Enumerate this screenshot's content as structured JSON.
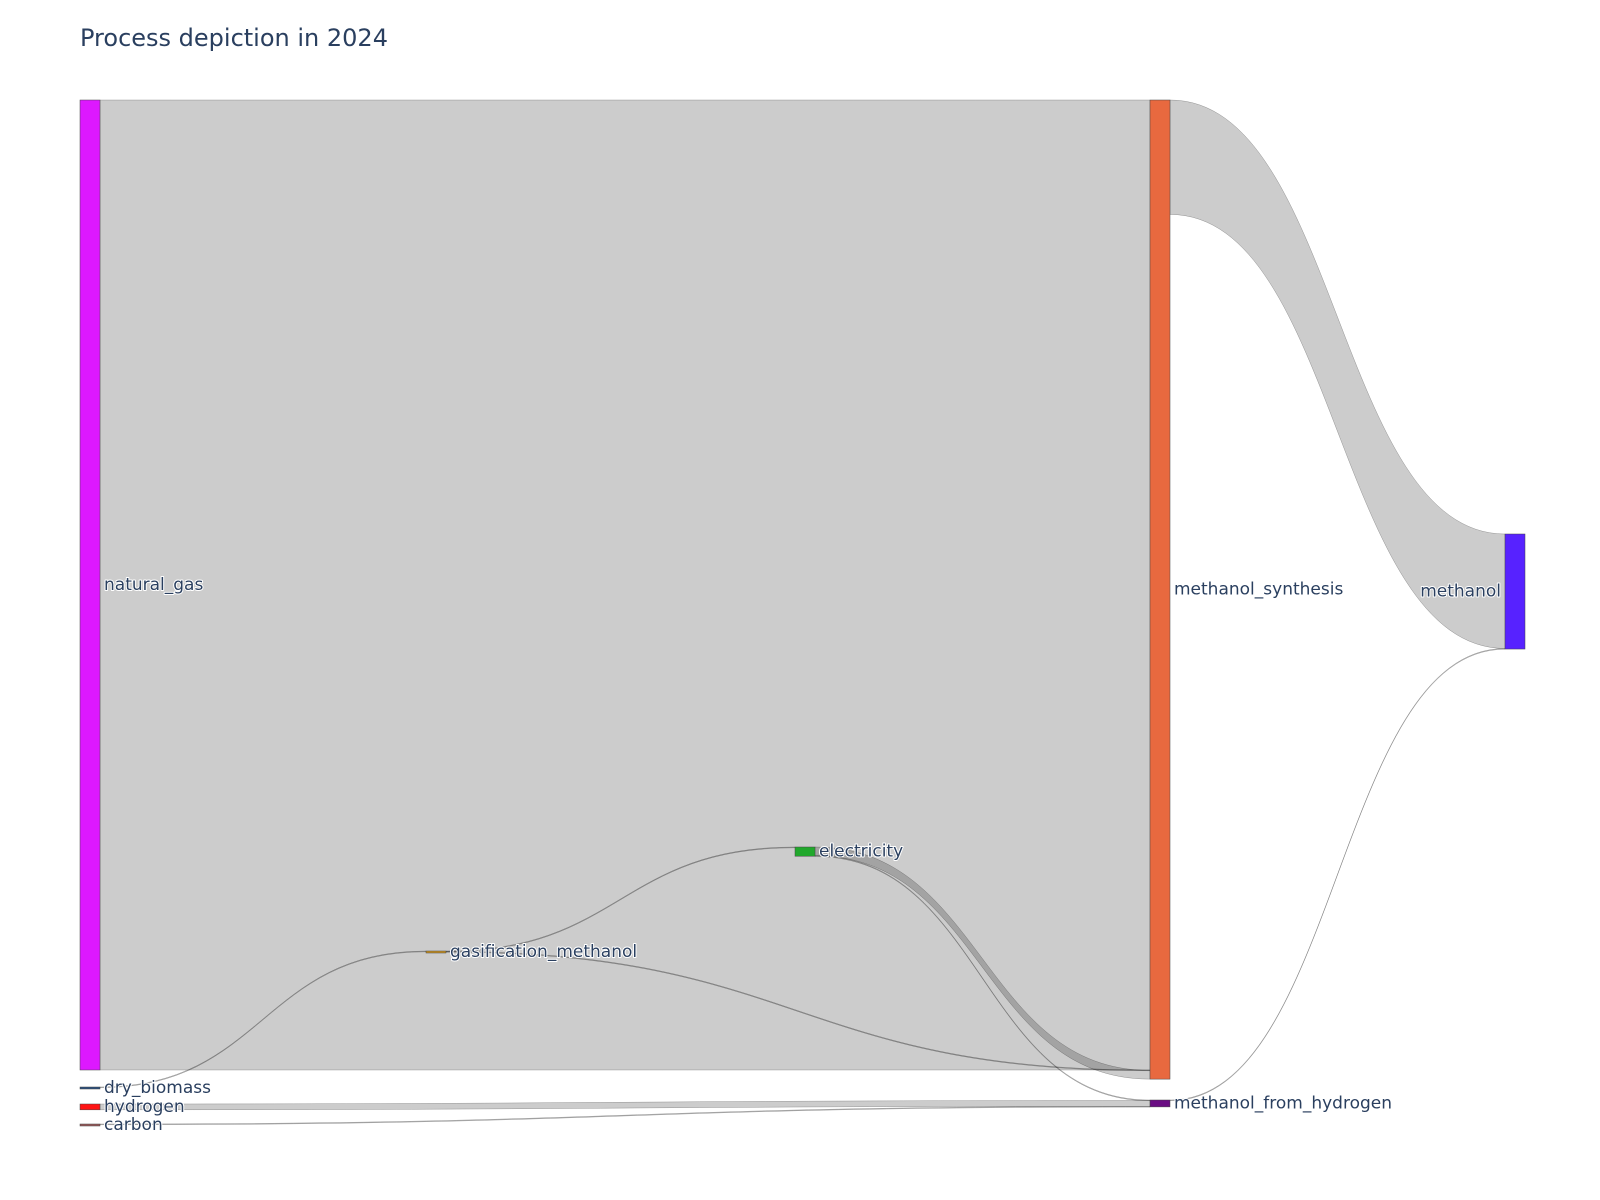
{
  "chart_data": {
    "type": "sankey",
    "title": "Process depiction in 2024",
    "link_color": "#000000",
    "nodes": [
      {
        "id": "natural_gas",
        "label": "natural_gas",
        "color": "#dd18ff",
        "column": 0
      },
      {
        "id": "dry_biomass",
        "label": "dry_biomass",
        "color": "#2b4f7f",
        "column": 0
      },
      {
        "id": "hydrogen",
        "label": "hydrogen",
        "color": "#ff1414",
        "column": 0
      },
      {
        "id": "carbon",
        "label": "carbon",
        "color": "#9a5a5a",
        "column": 0
      },
      {
        "id": "gasification_methanol",
        "label": "gasification_methanol",
        "color": "#c8901e",
        "column": 1
      },
      {
        "id": "electricity",
        "label": "electricity",
        "color": "#21a82c",
        "column": 2
      },
      {
        "id": "methanol_synthesis",
        "label": "methanol_synthesis",
        "color": "#e8693f",
        "column": 3
      },
      {
        "id": "methanol_from_hydrogen",
        "label": "methanol_from_hydrogen",
        "color": "#6a0d83",
        "column": 3
      },
      {
        "id": "methanol",
        "label": "methanol",
        "color": "#5722ff",
        "column": 4
      }
    ],
    "links": [
      {
        "source": "natural_gas",
        "target": "methanol_synthesis",
        "value": 1000
      },
      {
        "source": "dry_biomass",
        "target": "gasification_methanol",
        "value": 0.6
      },
      {
        "source": "gasification_methanol",
        "target": "electricity",
        "value": 0.4
      },
      {
        "source": "gasification_methanol",
        "target": "methanol_synthesis",
        "value": 0.4
      },
      {
        "source": "electricity",
        "target": "methanol_synthesis",
        "value": 9
      },
      {
        "source": "electricity",
        "target": "methanol_from_hydrogen",
        "value": 0.5
      },
      {
        "source": "hydrogen",
        "target": "methanol_from_hydrogen",
        "value": 6
      },
      {
        "source": "carbon",
        "target": "methanol_from_hydrogen",
        "value": 0.6
      },
      {
        "source": "methanol_synthesis",
        "target": "methanol",
        "value": 118
      },
      {
        "source": "methanol_from_hydrogen",
        "target": "methanol",
        "value": 0.6
      }
    ]
  }
}
